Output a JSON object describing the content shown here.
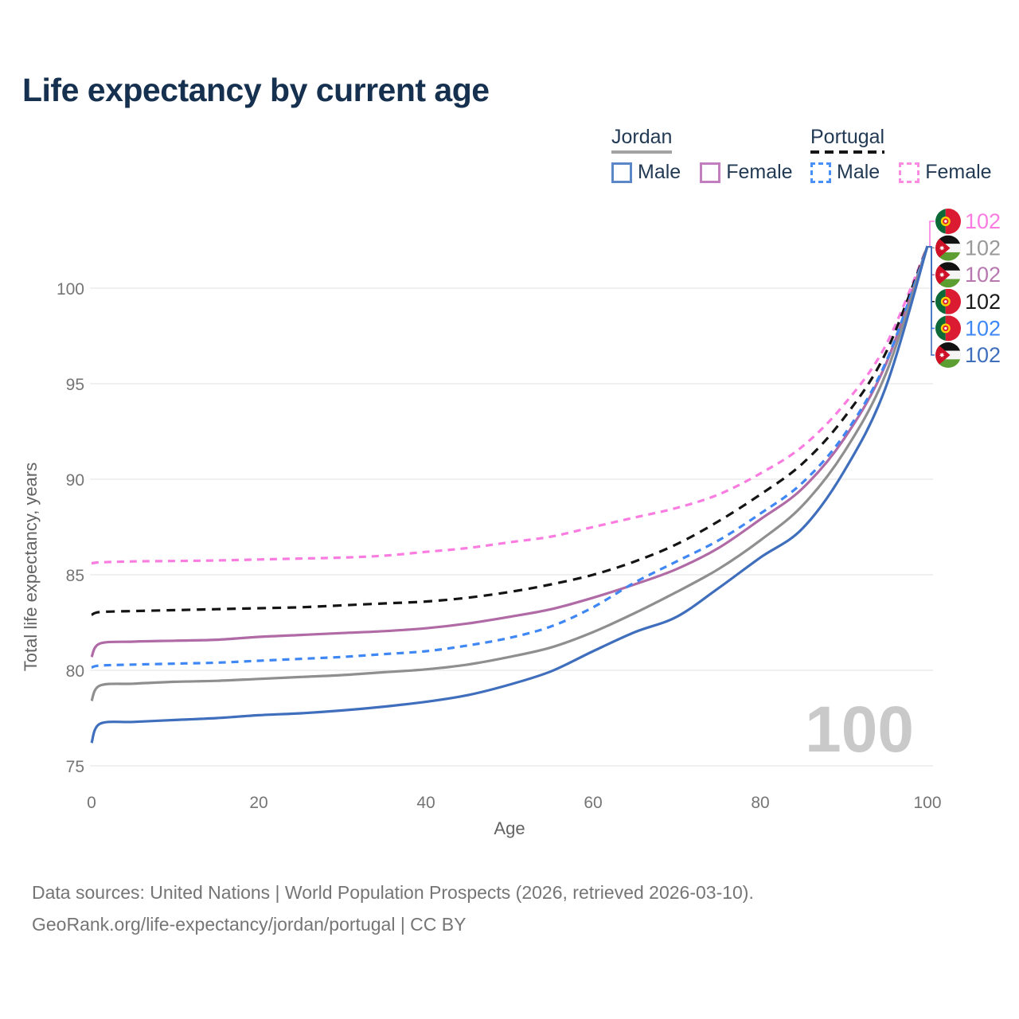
{
  "title": "Life expectancy by current age",
  "watermark": "100",
  "legend": {
    "groups": [
      {
        "country": "Jordan",
        "line_style": "solid",
        "items": [
          {
            "label": "Male",
            "color": "#5b87c8"
          },
          {
            "label": "Female",
            "color": "#c17fc0"
          }
        ]
      },
      {
        "country": "Portugal",
        "line_style": "dashed",
        "items": [
          {
            "label": "Male",
            "color": "#4a90f7"
          },
          {
            "label": "Female",
            "color": "#fc8ce2"
          }
        ]
      }
    ]
  },
  "chart_data": {
    "type": "line",
    "title": "Life expectancy by current age",
    "xlabel": "Age",
    "ylabel": "Total life expectancy, years",
    "xlim": [
      0,
      100
    ],
    "ylim": [
      75,
      103
    ],
    "x_ticks": [
      0,
      20,
      40,
      60,
      80,
      100
    ],
    "y_ticks": [
      75,
      80,
      85,
      90,
      95,
      100
    ],
    "grid": "horizontal",
    "legend_position": "top-right",
    "ages": [
      0,
      1,
      5,
      10,
      15,
      20,
      25,
      30,
      35,
      40,
      45,
      50,
      55,
      60,
      65,
      70,
      75,
      80,
      85,
      90,
      95,
      100
    ],
    "series": [
      {
        "name": "Portugal Female",
        "flag": "portugal",
        "dash": true,
        "color": "#fb7ce1",
        "values": [
          85.6,
          85.65,
          85.7,
          85.72,
          85.75,
          85.8,
          85.85,
          85.9,
          86.0,
          86.2,
          86.4,
          86.7,
          87.0,
          87.5,
          88.0,
          88.5,
          89.2,
          90.3,
          91.7,
          93.9,
          97.0,
          102.2
        ]
      },
      {
        "name": "Portugal",
        "flag": "portugal",
        "dash": true,
        "color": "#141414",
        "values": [
          82.9,
          83.05,
          83.1,
          83.15,
          83.2,
          83.25,
          83.3,
          83.4,
          83.5,
          83.6,
          83.8,
          84.1,
          84.5,
          85.0,
          85.7,
          86.6,
          87.8,
          89.2,
          90.8,
          93.2,
          96.6,
          102.2
        ]
      },
      {
        "name": "Jordan Female",
        "flag": "jordan",
        "dash": false,
        "color": "#b06aa5",
        "values": [
          80.7,
          81.4,
          81.5,
          81.55,
          81.6,
          81.75,
          81.85,
          81.95,
          82.05,
          82.2,
          82.45,
          82.8,
          83.2,
          83.8,
          84.5,
          85.3,
          86.4,
          87.9,
          89.5,
          92.1,
          96.0,
          102.2
        ]
      },
      {
        "name": "Portugal Male",
        "flag": "portugal",
        "dash": true,
        "color": "#3f87f5",
        "values": [
          80.15,
          80.25,
          80.3,
          80.35,
          80.4,
          80.5,
          80.6,
          80.7,
          80.85,
          81.0,
          81.3,
          81.7,
          82.3,
          83.3,
          84.6,
          85.7,
          86.8,
          88.2,
          89.8,
          92.3,
          96.1,
          102.2
        ]
      },
      {
        "name": "Jordan",
        "flag": "jordan",
        "dash": false,
        "color": "#8f8f8f",
        "values": [
          78.4,
          79.2,
          79.3,
          79.4,
          79.45,
          79.55,
          79.65,
          79.75,
          79.9,
          80.05,
          80.3,
          80.7,
          81.2,
          82.0,
          83.0,
          84.1,
          85.3,
          86.8,
          88.6,
          91.4,
          95.5,
          102.2
        ]
      },
      {
        "name": "Jordan Male",
        "flag": "jordan",
        "dash": false,
        "color": "#3f6fbc",
        "values": [
          76.2,
          77.2,
          77.3,
          77.4,
          77.5,
          77.65,
          77.75,
          77.9,
          78.1,
          78.35,
          78.7,
          79.25,
          79.95,
          81.0,
          82.0,
          82.8,
          84.3,
          85.9,
          87.4,
          90.4,
          94.8,
          102.2
        ]
      }
    ],
    "end_labels": [
      {
        "flag": "portugal",
        "value": "102",
        "color": "#fb7ce1"
      },
      {
        "flag": "jordan",
        "value": "102",
        "color": "#999999"
      },
      {
        "flag": "jordan",
        "value": "102",
        "color": "#b678ae"
      },
      {
        "flag": "portugal",
        "value": "102",
        "color": "#1a1a1a"
      },
      {
        "flag": "portugal",
        "value": "102",
        "color": "#3f87f5"
      },
      {
        "flag": "jordan",
        "value": "102",
        "color": "#3f6fbc"
      }
    ]
  },
  "footer": {
    "line1": "Data sources: United Nations | World Population Prospects (2026, retrieved 2026-03-10).",
    "line2": "GeoRank.org/life-expectancy/jordan/portugal | CC BY"
  }
}
